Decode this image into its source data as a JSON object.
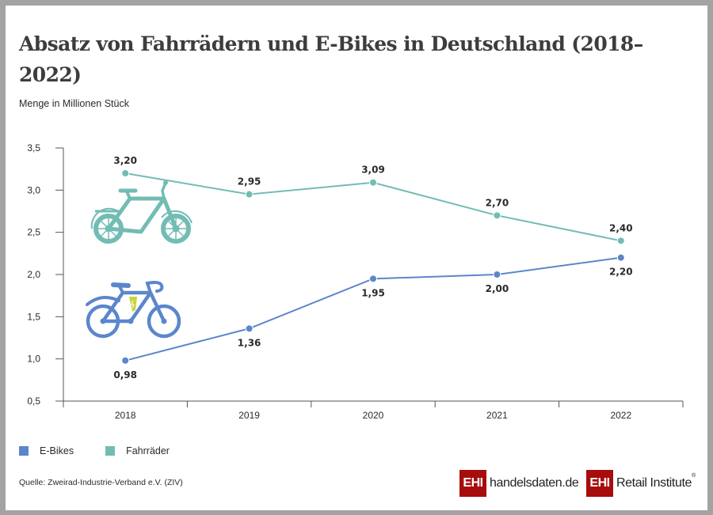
{
  "title": "Absatz von Fahrrädern und E-Bikes in Deutschland (2018–2022)",
  "unit_label": "Menge in Millionen Stück",
  "source": "Quelle: Zweirad-Industrie-Verband e.V. (ZIV)",
  "colors": {
    "ebikes": "#5b86cc",
    "fahrraeder": "#72bcb4",
    "battery": "#c6d53c",
    "axis": "#555555",
    "brand_red": "#a70d0d"
  },
  "icons": {
    "fahrrad": "bicycle-icon",
    "ebike": "e-bike-icon"
  },
  "logos": {
    "handelsdaten": {
      "box": "EHI",
      "text_main": "handelsdaten",
      "text_dot": ".",
      "text_tld": "de"
    },
    "retail": {
      "box": "EHI",
      "text": "Retail Institute",
      "reg": "®"
    }
  },
  "chart_data": {
    "type": "line",
    "title": "Absatz von Fahrrädern und E-Bikes in Deutschland (2018–2022)",
    "xlabel": "",
    "ylabel": "Menge in Millionen Stück",
    "categories": [
      "2018",
      "2019",
      "2020",
      "2021",
      "2022"
    ],
    "ylim": [
      0.5,
      3.5
    ],
    "yticks": [
      0.5,
      1.0,
      1.5,
      2.0,
      2.5,
      3.0,
      3.5
    ],
    "ytick_labels": [
      "0,5",
      "1,0",
      "1,5",
      "2,0",
      "2,5",
      "3,0",
      "3,5"
    ],
    "grid": false,
    "legend_position": "bottom-left",
    "series": [
      {
        "name": "E-Bikes",
        "color": "#5b86cc",
        "values": [
          0.98,
          1.36,
          1.95,
          2.0,
          2.2
        ],
        "labels": [
          "0,98",
          "1,36",
          "1,95",
          "2,00",
          "2,20"
        ],
        "label_position": "below"
      },
      {
        "name": "Fahrräder",
        "color": "#72bcb4",
        "values": [
          3.2,
          2.95,
          3.09,
          2.7,
          2.4
        ],
        "labels": [
          "3,20",
          "2,95",
          "3,09",
          "2,70",
          "2,40"
        ],
        "label_position": "above"
      }
    ]
  }
}
